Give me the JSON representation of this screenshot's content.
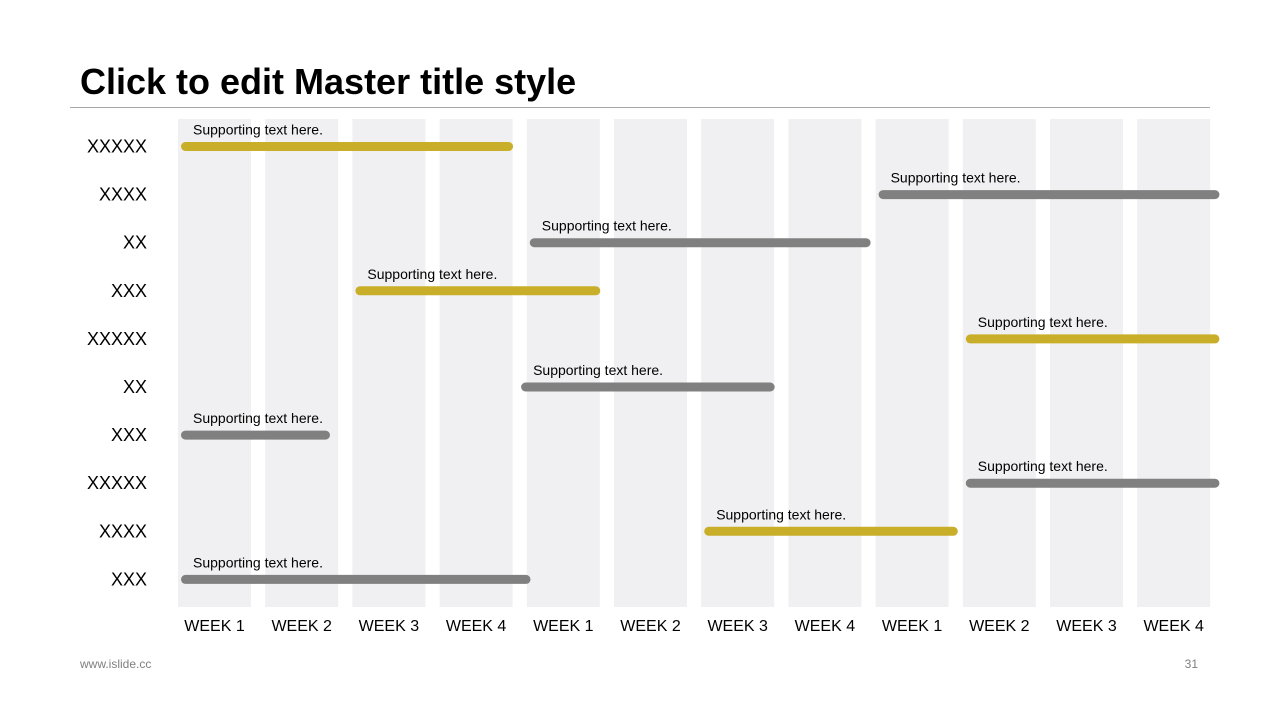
{
  "title": "Click to edit Master title style",
  "footer": {
    "url": "www.islide.cc",
    "page_number": "31"
  },
  "colors": {
    "accent_gold": "#C9AE2A",
    "accent_gray": "#808080",
    "column_fill": "#F0F0F2"
  },
  "chart_data": {
    "type": "gantt",
    "columns": [
      "WEEK 1",
      "WEEK 2",
      "WEEK 3",
      "WEEK 4",
      "WEEK 1",
      "WEEK 2",
      "WEEK 3",
      "WEEK 4",
      "WEEK 1",
      "WEEK 2",
      "WEEK 3",
      "WEEK 4"
    ],
    "rows": [
      {
        "label": "XXXXX",
        "text": "Supporting text here.",
        "start": 0.0,
        "end": 3.9,
        "color": "gold"
      },
      {
        "label": "XXXX",
        "text": "Supporting text here.",
        "start": 8.0,
        "end": 12.0,
        "color": "gray"
      },
      {
        "label": "XX",
        "text": "Supporting text here.",
        "start": 4.0,
        "end": 8.0,
        "color": "gray"
      },
      {
        "label": "XXX",
        "text": "Supporting text here.",
        "start": 2.0,
        "end": 4.9,
        "color": "gold"
      },
      {
        "label": "XXXXX",
        "text": "Supporting text here.",
        "start": 9.0,
        "end": 12.0,
        "color": "gold"
      },
      {
        "label": "XX",
        "text": "Supporting text here.",
        "start": 3.9,
        "end": 6.9,
        "color": "gray"
      },
      {
        "label": "XXX",
        "text": "Supporting text here.",
        "start": 0.0,
        "end": 1.8,
        "color": "gray"
      },
      {
        "label": "XXXXX",
        "text": "Supporting text here.",
        "start": 9.0,
        "end": 12.0,
        "color": "gray"
      },
      {
        "label": "XXXX",
        "text": "Supporting text here.",
        "start": 6.0,
        "end": 9.0,
        "color": "gold"
      },
      {
        "label": "XXX",
        "text": "Supporting text here.",
        "start": 0.0,
        "end": 4.1,
        "color": "gray"
      }
    ]
  }
}
